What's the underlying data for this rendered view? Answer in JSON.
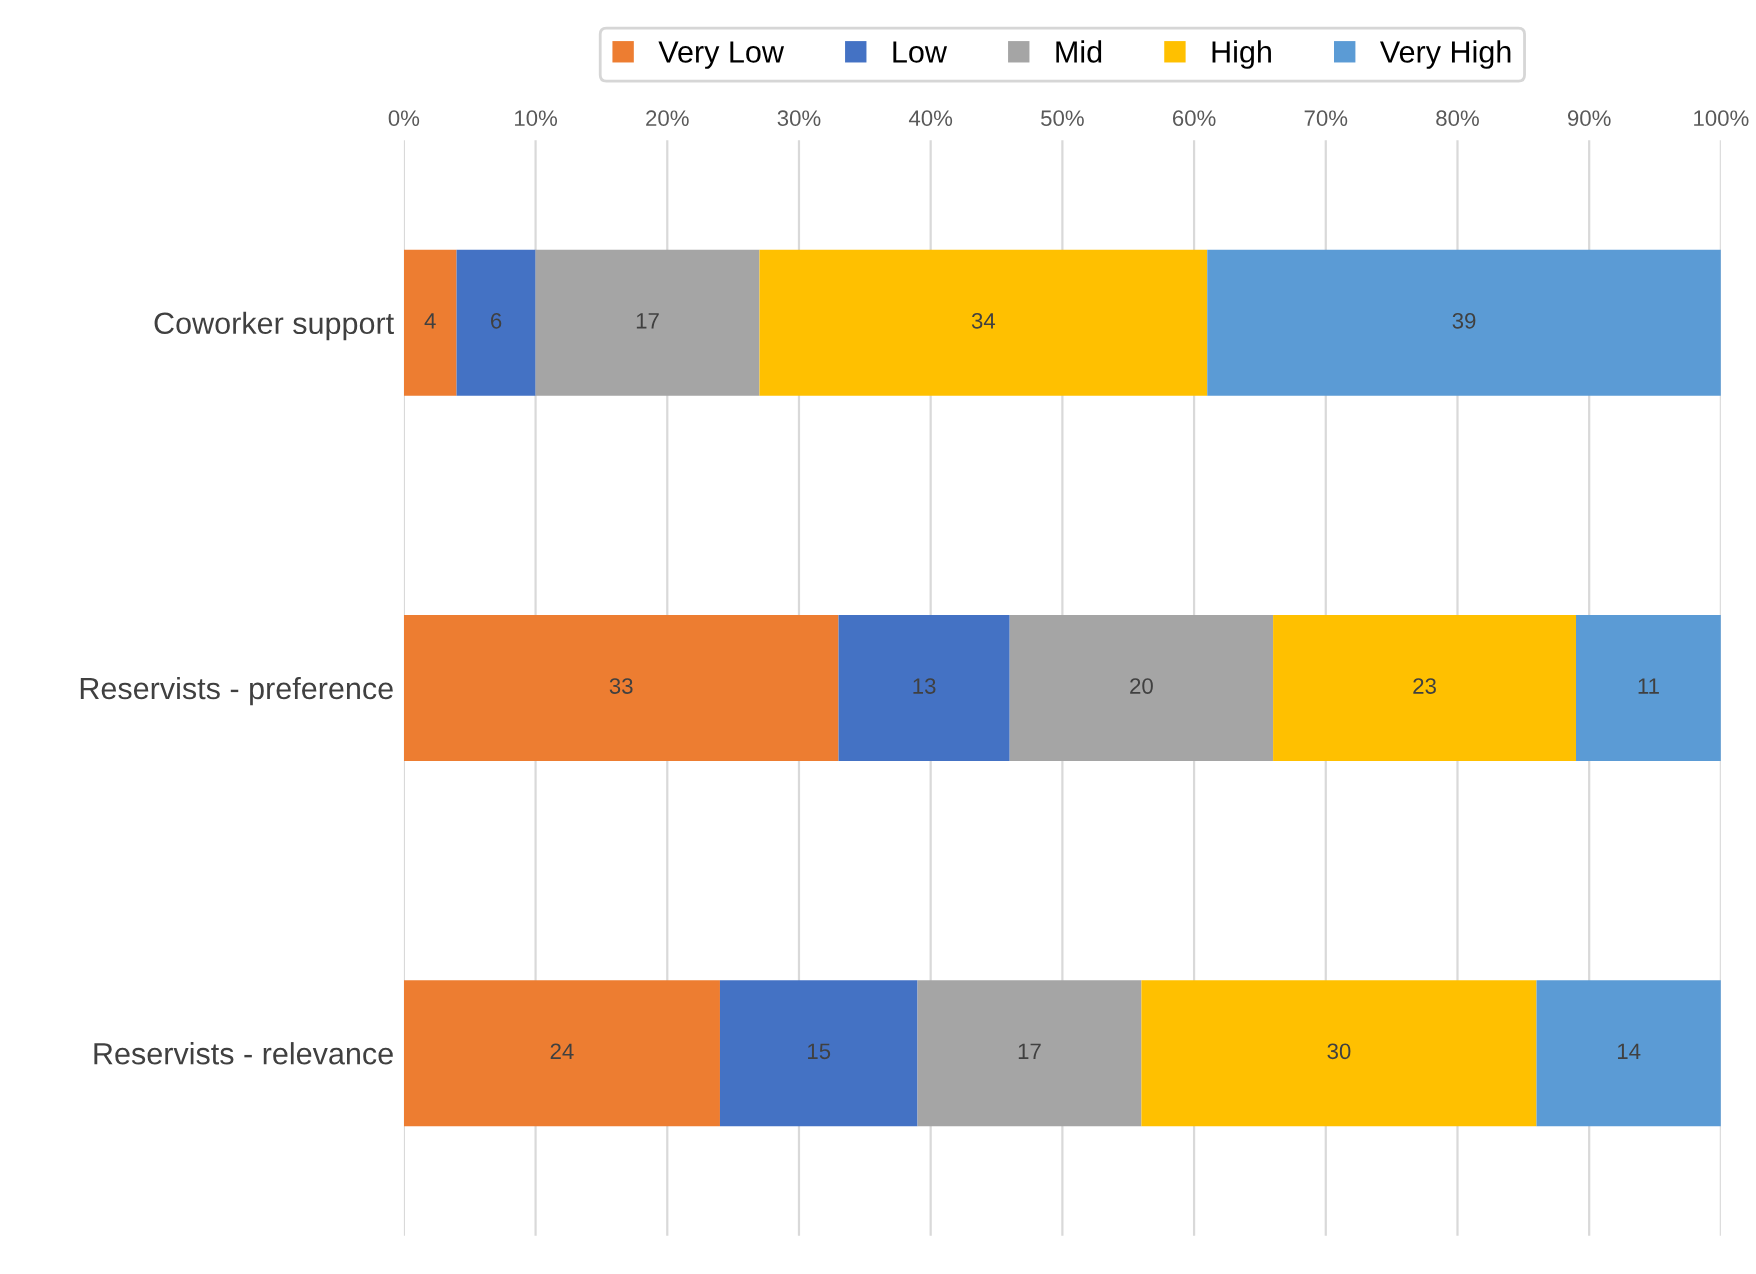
{
  "chart_data": {
    "type": "bar",
    "orientation": "horizontal",
    "stacked": true,
    "categories": [
      "Coworker support",
      "Reservists - preference",
      "Reservists - relevance"
    ],
    "series": [
      {
        "name": "Very Low",
        "color": "#ed7d31",
        "values": [
          4,
          33,
          24
        ]
      },
      {
        "name": "Low",
        "color": "#4472c4",
        "values": [
          6,
          13,
          15
        ]
      },
      {
        "name": "Mid",
        "color": "#a5a5a5",
        "values": [
          17,
          20,
          17
        ]
      },
      {
        "name": "High",
        "color": "#ffc000",
        "values": [
          34,
          23,
          30
        ]
      },
      {
        "name": "Very High",
        "color": "#5b9bd5",
        "values": [
          39,
          11,
          14
        ]
      }
    ],
    "xlim": [
      0,
      100
    ],
    "xticks": [
      {
        "value": 0,
        "label": "0%"
      },
      {
        "value": 10,
        "label": "10%"
      },
      {
        "value": 20,
        "label": "20%"
      },
      {
        "value": 30,
        "label": "30%"
      },
      {
        "value": 40,
        "label": "40%"
      },
      {
        "value": 50,
        "label": "50%"
      },
      {
        "value": 60,
        "label": "60%"
      },
      {
        "value": 70,
        "label": "70%"
      },
      {
        "value": 80,
        "label": "80%"
      },
      {
        "value": 90,
        "label": "90%"
      },
      {
        "value": 100,
        "label": "100%"
      }
    ],
    "grid": "x",
    "legend": "top",
    "data_labels": true
  }
}
